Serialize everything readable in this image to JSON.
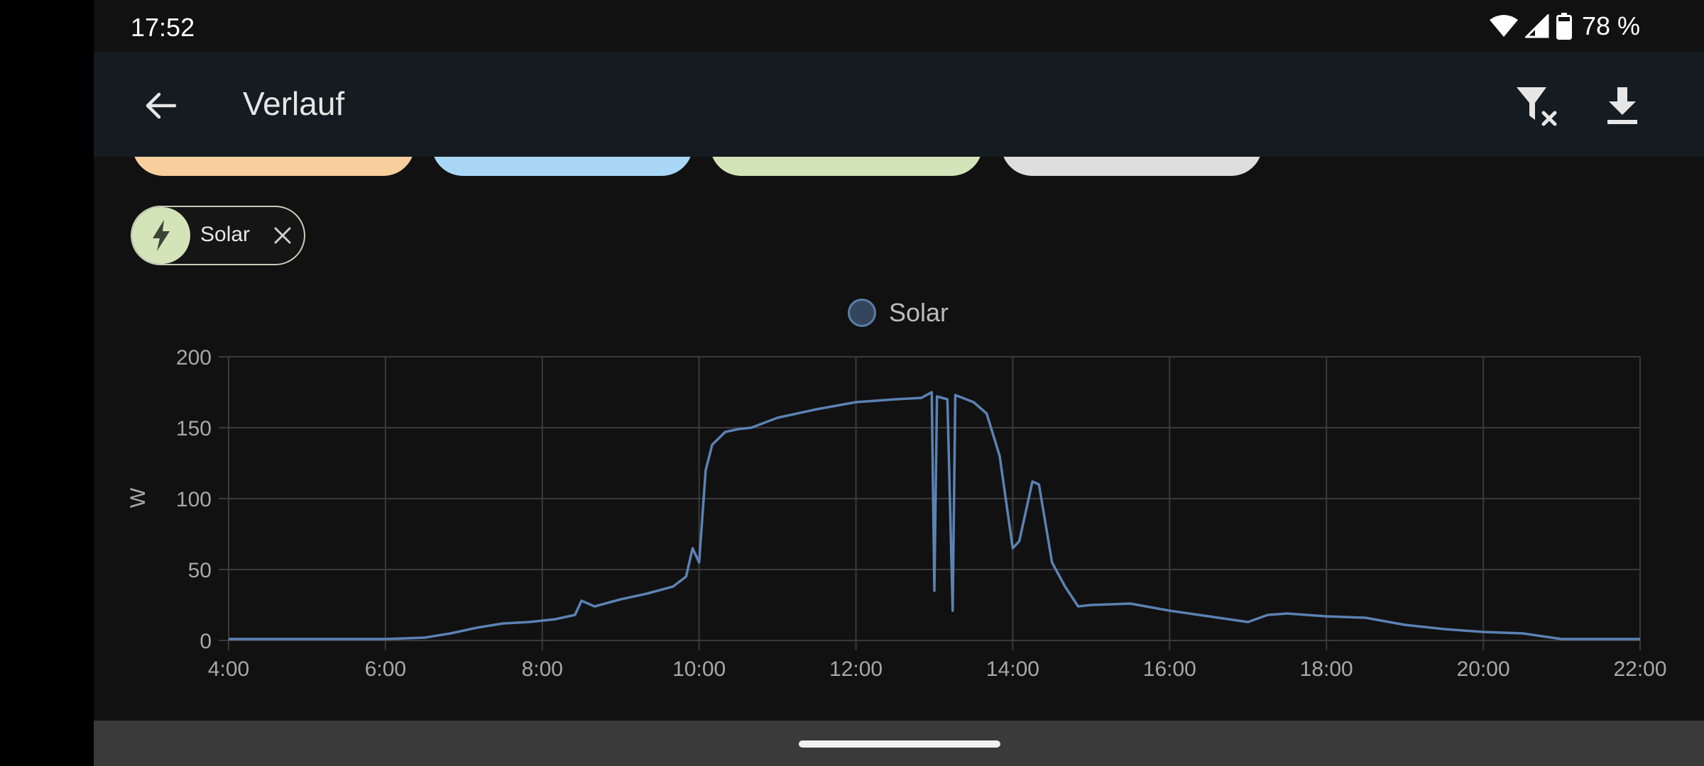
{
  "status_bar": {
    "time": "17:52",
    "battery": "78 %",
    "icons": [
      "wifi-icon",
      "cell-signal-icon",
      "battery-icon"
    ]
  },
  "app_bar": {
    "title": "Verlauf",
    "back_icon": "arrow-back-icon",
    "actions": [
      "filter-remove-icon",
      "download-icon"
    ]
  },
  "filters": {
    "entity_chip": {
      "label": "Solar",
      "icon": "lightning-bolt-icon",
      "remove_icon": "close-icon"
    },
    "peek_chip_colors": [
      "#f6cf9c",
      "#a9d7f5",
      "#d4e4b9",
      "#dedede"
    ]
  },
  "chart_data": {
    "type": "line",
    "ylabel": "W",
    "xlabel": "",
    "ylim": [
      0,
      200
    ],
    "yticks": [
      "0",
      "50",
      "100",
      "150",
      "200"
    ],
    "xlim": [
      "4:00",
      "22:00"
    ],
    "xticks": [
      "4:00",
      "6:00",
      "8:00",
      "10:00",
      "12:00",
      "14:00",
      "16:00",
      "18:00",
      "20:00",
      "22:00"
    ],
    "grid": true,
    "legend_position": "top-center",
    "series": [
      {
        "name": "Solar",
        "color": "#5b82b3",
        "points": [
          [
            "4:00",
            1
          ],
          [
            "6:00",
            1
          ],
          [
            "6:30",
            2
          ],
          [
            "6:50",
            5
          ],
          [
            "7:10",
            9
          ],
          [
            "7:30",
            12
          ],
          [
            "7:50",
            13
          ],
          [
            "8:10",
            15
          ],
          [
            "8:25",
            18
          ],
          [
            "8:30",
            28
          ],
          [
            "8:40",
            24
          ],
          [
            "9:00",
            29
          ],
          [
            "9:20",
            33
          ],
          [
            "9:40",
            38
          ],
          [
            "9:50",
            45
          ],
          [
            "9:55",
            65
          ],
          [
            "10:00",
            55
          ],
          [
            "10:05",
            120
          ],
          [
            "10:10",
            138
          ],
          [
            "10:20",
            147
          ],
          [
            "10:30",
            149
          ],
          [
            "10:40",
            150
          ],
          [
            "11:00",
            157
          ],
          [
            "11:30",
            163
          ],
          [
            "12:00",
            168
          ],
          [
            "12:30",
            170
          ],
          [
            "12:50",
            171
          ],
          [
            "12:58",
            175
          ],
          [
            "13:00",
            35
          ],
          [
            "13:02",
            172
          ],
          [
            "13:10",
            170
          ],
          [
            "13:14",
            21
          ],
          [
            "13:16",
            173
          ],
          [
            "13:30",
            168
          ],
          [
            "13:40",
            160
          ],
          [
            "13:50",
            130
          ],
          [
            "14:00",
            65
          ],
          [
            "14:05",
            70
          ],
          [
            "14:15",
            112
          ],
          [
            "14:20",
            110
          ],
          [
            "14:30",
            55
          ],
          [
            "14:40",
            38
          ],
          [
            "14:50",
            24
          ],
          [
            "15:00",
            25
          ],
          [
            "15:30",
            26
          ],
          [
            "16:00",
            21
          ],
          [
            "16:30",
            17
          ],
          [
            "17:00",
            13
          ],
          [
            "17:15",
            18
          ],
          [
            "17:30",
            19
          ],
          [
            "18:00",
            17
          ],
          [
            "18:30",
            16
          ],
          [
            "19:00",
            11
          ],
          [
            "19:30",
            8
          ],
          [
            "20:00",
            6
          ],
          [
            "20:30",
            5
          ],
          [
            "21:00",
            1
          ],
          [
            "22:00",
            1
          ]
        ]
      }
    ]
  },
  "system_nav": {
    "type": "gesture-pill"
  }
}
